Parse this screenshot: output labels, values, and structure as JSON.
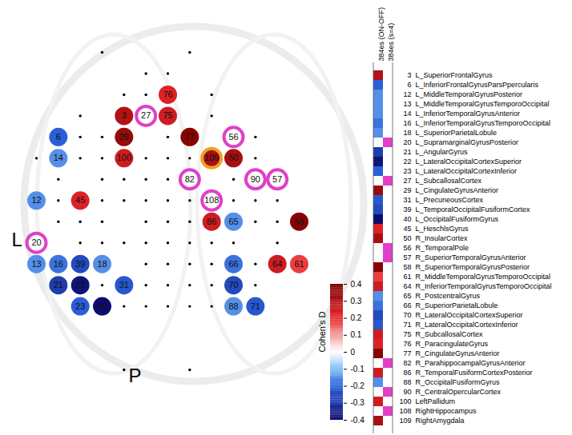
{
  "chart_data": {
    "type": "topomap",
    "side_labels": {
      "left": "L",
      "posterior": "P"
    },
    "colorbar": {
      "label": "Cohen's D",
      "range": [
        -0.4,
        0.4
      ],
      "ticks": [
        -0.4,
        -0.3,
        -0.2,
        -0.1,
        0,
        0.1,
        0.2,
        0.3,
        0.4
      ]
    },
    "columns": [
      {
        "name": "384es (ON-OFF)"
      },
      {
        "name": "384es (s=4)",
        "color": "#e040c8"
      }
    ],
    "highlight": {
      "ids": [
        109
      ],
      "color": "#f0a020"
    },
    "regions": [
      {
        "id": 3,
        "name": "L_SuperiorFrontalGyrus",
        "d": 0.3,
        "s4": false,
        "site": [
          4,
          3
        ]
      },
      {
        "id": 6,
        "name": "L_InferiorFrontalGyrusParsPpercularis",
        "d": -0.2,
        "s4": false,
        "site": [
          1,
          4
        ]
      },
      {
        "id": 12,
        "name": "L_MiddleTemporalGyrusPosterior",
        "d": -0.15,
        "s4": false,
        "site": [
          0,
          7
        ]
      },
      {
        "id": 13,
        "name": "L_MiddleTemporalGyrusTemporoOccipital",
        "d": -0.15,
        "s4": false,
        "site": [
          0,
          10
        ]
      },
      {
        "id": 14,
        "name": "L_InferiorTemporalGyrusAnterior",
        "d": -0.15,
        "s4": false,
        "site": [
          1,
          5
        ]
      },
      {
        "id": 16,
        "name": "L_InferiorTemporalGyrusTemporoOccipital",
        "d": -0.18,
        "s4": false,
        "site": [
          1,
          10
        ]
      },
      {
        "id": 18,
        "name": "L_SuperiorParietalLobule",
        "d": -0.15,
        "s4": false,
        "site": [
          3,
          10
        ]
      },
      {
        "id": 20,
        "name": "L_SupramarginalGyrusPosterior",
        "d": null,
        "s4": true,
        "site": [
          0,
          9
        ]
      },
      {
        "id": 21,
        "name": "L_AngularGyrus",
        "d": -0.28,
        "s4": false,
        "site": [
          1,
          11
        ]
      },
      {
        "id": 22,
        "name": "L_LateralOccipitalCortexSuperior",
        "d": -0.38,
        "s4": false,
        "site": [
          2,
          11
        ]
      },
      {
        "id": 23,
        "name": "L_LateralOccipitalCortexInferior",
        "d": -0.2,
        "s4": false,
        "site": [
          2,
          12
        ]
      },
      {
        "id": 27,
        "name": "L_SubcallosalCortex",
        "d": null,
        "s4": true,
        "site": [
          5,
          3
        ]
      },
      {
        "id": 29,
        "name": "L_CingulateGyrusAnterior",
        "d": 0.35,
        "s4": false,
        "site": [
          4,
          4
        ]
      },
      {
        "id": 31,
        "name": "L_PrecuneousCortex",
        "d": -0.22,
        "s4": false,
        "site": [
          4,
          11
        ]
      },
      {
        "id": 39,
        "name": "L_TemporalOccipitalFusiformCortex",
        "d": -0.25,
        "s4": false,
        "site": [
          2,
          10
        ]
      },
      {
        "id": 40,
        "name": "L_OccipitalFusiformGyrus",
        "d": -0.4,
        "s4": false,
        "site": [
          3,
          12
        ]
      },
      {
        "id": 45,
        "name": "L_HeschlsGyrus",
        "d": 0.22,
        "s4": false,
        "site": [
          2,
          7
        ]
      },
      {
        "id": 50,
        "name": "R_InsularCortex",
        "d": 0.32,
        "s4": false,
        "site": [
          9,
          5
        ]
      },
      {
        "id": 56,
        "name": "R_TemporalPole",
        "d": null,
        "s4": true,
        "site": [
          9,
          4
        ]
      },
      {
        "id": 57,
        "name": "R_SuperiorTemporalGyrusAnterior",
        "d": null,
        "s4": true,
        "site": [
          11,
          6
        ]
      },
      {
        "id": 58,
        "name": "R_SuperiorTemporalGyrusPosterior",
        "d": 0.38,
        "s4": false,
        "site": [
          12,
          8
        ]
      },
      {
        "id": 61,
        "name": "R_MiddleTemporalGyrusTemporoOccipital",
        "d": 0.18,
        "s4": false,
        "site": [
          12,
          10
        ]
      },
      {
        "id": 64,
        "name": "R_InferiorTemporalGyrusTemporoOccipital",
        "d": 0.25,
        "s4": false,
        "site": [
          11,
          10
        ]
      },
      {
        "id": 65,
        "name": "R_PostcentralGyrus",
        "d": -0.15,
        "s4": false,
        "site": [
          9,
          8
        ]
      },
      {
        "id": 66,
        "name": "R_SuperiorParietalLobule",
        "d": -0.18,
        "s4": false,
        "site": [
          9,
          10
        ]
      },
      {
        "id": 70,
        "name": "R_LateralOccipitalCortexSuperior",
        "d": -0.25,
        "s4": false,
        "site": [
          9,
          11
        ]
      },
      {
        "id": 71,
        "name": "R_LateralOccipitalCortexInferior",
        "d": -0.22,
        "s4": false,
        "site": [
          10,
          12
        ]
      },
      {
        "id": 75,
        "name": "R_SubcallosalCortex",
        "d": 0.25,
        "s4": false,
        "site": [
          6,
          3
        ]
      },
      {
        "id": 76,
        "name": "R_ParacingulateGyrus",
        "d": 0.22,
        "s4": false,
        "site": [
          6,
          2
        ]
      },
      {
        "id": 77,
        "name": "R_CingulateGyrusAnterior",
        "d": 0.38,
        "s4": false,
        "site": [
          7,
          4
        ]
      },
      {
        "id": 82,
        "name": "R_ParahippocampalGyrusAnterior",
        "d": null,
        "s4": true,
        "site": [
          7,
          6
        ]
      },
      {
        "id": 86,
        "name": "R_TemporalFusiformCortexPosterior",
        "d": 0.25,
        "s4": false,
        "site": [
          8,
          8
        ]
      },
      {
        "id": 88,
        "name": "R_OccipitalFusiformGyrus",
        "d": -0.15,
        "s4": false,
        "site": [
          9,
          12
        ]
      },
      {
        "id": 90,
        "name": "R_CentralOpercularCortex",
        "d": null,
        "s4": true,
        "site": [
          10,
          6
        ]
      },
      {
        "id": 100,
        "name": "LeftPallidum",
        "d": 0.25,
        "s4": false,
        "site": [
          4,
          5
        ]
      },
      {
        "id": 108,
        "name": "RightHippocampus",
        "d": null,
        "s4": true,
        "site": [
          8,
          7
        ]
      },
      {
        "id": 109,
        "name": "RightAmygdala",
        "d": 0.32,
        "s4": false,
        "site": [
          8,
          5
        ]
      }
    ],
    "sites": [
      [
        3,
        0
      ],
      [
        7,
        0
      ],
      [
        5,
        1
      ],
      [
        6,
        1
      ],
      [
        4,
        2
      ],
      [
        5,
        2
      ],
      [
        8,
        2
      ],
      [
        2,
        3
      ],
      [
        8,
        3
      ],
      [
        2,
        4
      ],
      [
        3,
        4
      ],
      [
        6,
        4
      ],
      [
        10,
        4
      ],
      [
        0,
        5
      ],
      [
        2,
        5
      ],
      [
        3,
        5
      ],
      [
        5,
        5
      ],
      [
        6,
        5
      ],
      [
        7,
        5
      ],
      [
        10,
        5
      ],
      [
        1,
        6
      ],
      [
        3,
        6
      ],
      [
        4,
        6
      ],
      [
        5,
        6
      ],
      [
        6,
        6
      ],
      [
        9,
        6
      ],
      [
        1,
        7
      ],
      [
        3,
        7
      ],
      [
        4,
        7
      ],
      [
        5,
        7
      ],
      [
        6,
        7
      ],
      [
        7,
        7
      ],
      [
        9,
        7
      ],
      [
        10,
        7
      ],
      [
        11,
        7
      ],
      [
        1,
        8
      ],
      [
        2,
        8
      ],
      [
        3,
        8
      ],
      [
        5,
        8
      ],
      [
        6,
        8
      ],
      [
        7,
        8
      ],
      [
        10,
        8
      ],
      [
        11,
        8
      ],
      [
        2,
        9
      ],
      [
        3,
        9
      ],
      [
        4,
        9
      ],
      [
        5,
        9
      ],
      [
        6,
        9
      ],
      [
        7,
        9
      ],
      [
        8,
        9
      ],
      [
        9,
        9
      ],
      [
        11,
        9
      ],
      [
        5,
        10
      ],
      [
        6,
        10
      ],
      [
        7,
        10
      ],
      [
        8,
        10
      ],
      [
        10,
        10
      ],
      [
        3,
        11
      ],
      [
        5,
        11
      ],
      [
        6,
        11
      ],
      [
        7,
        11
      ],
      [
        8,
        11
      ],
      [
        10,
        11
      ],
      [
        4,
        12
      ],
      [
        5,
        12
      ],
      [
        6,
        12
      ],
      [
        7,
        12
      ],
      [
        8,
        12
      ],
      [
        4,
        15
      ],
      [
        7,
        15
      ]
    ]
  }
}
